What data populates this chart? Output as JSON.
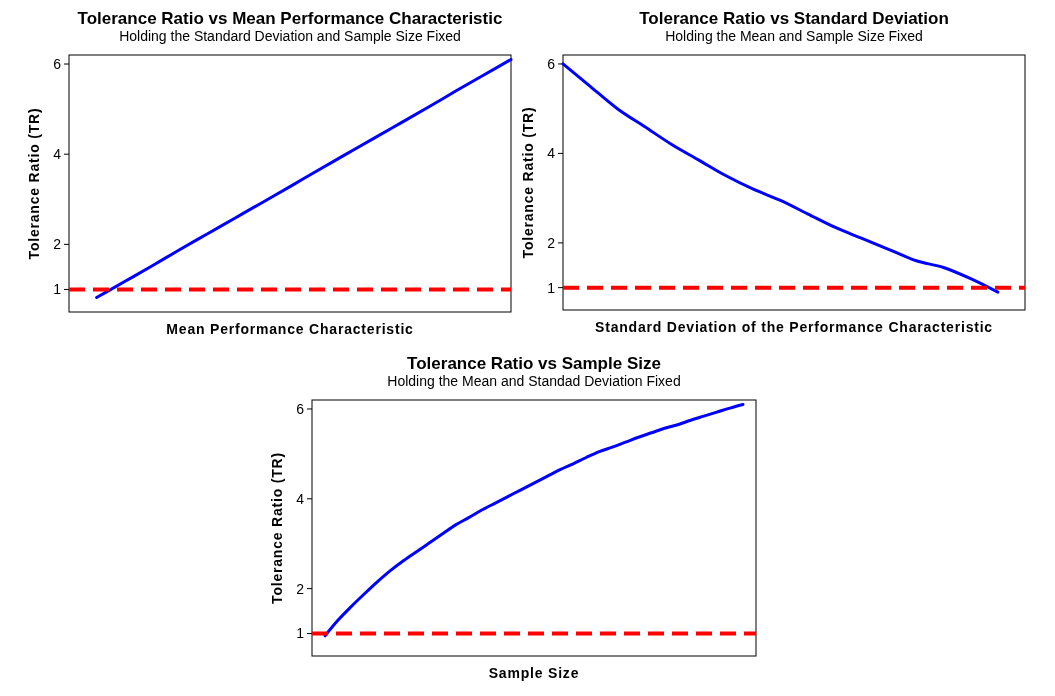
{
  "chart_data": [
    {
      "type": "line",
      "title": "Tolerance Ratio vs Mean Performance Characteristic",
      "subtitle": "Holding the Standard Deviation and Sample Size Fixed",
      "xlabel": "Mean Performance Characteristic",
      "ylabel": "Tolerance Ratio (TR)",
      "categories": [
        null,
        null,
        null,
        null,
        null,
        null,
        null,
        null,
        null,
        null,
        null,
        null,
        null,
        null,
        null,
        null,
        null
      ],
      "series": [
        {
          "color": "#0000ff",
          "values": [
            null,
            0.82,
            1.17,
            1.52,
            1.88,
            2.23,
            2.58,
            2.93,
            3.28,
            3.64,
            3.99,
            4.34,
            4.69,
            5.04,
            5.4,
            5.75,
            6.1
          ]
        }
      ],
      "ylim": [
        0.5,
        6.2
      ],
      "yticks": [
        1,
        2,
        4,
        6
      ],
      "ref_lines": [
        {
          "axis": "y",
          "value": 1,
          "color": "#ff0000",
          "line_style": "dashed"
        }
      ],
      "line_style": "solid",
      "marker": "none"
    },
    {
      "type": "line",
      "title": "Tolerance Ratio vs Standard Deviation",
      "subtitle": "Holding the Mean and Sample Size Fixed",
      "xlabel": "Standard Deviation of the Performance Characteristic",
      "ylabel": "Tolerance Ratio (TR)",
      "categories": [
        null,
        null,
        null,
        null,
        null,
        null,
        null,
        null,
        null,
        null,
        null,
        null,
        null,
        null,
        null,
        null,
        null,
        null
      ],
      "series": [
        {
          "color": "#0000ff",
          "values": [
            6.0,
            5.5,
            5.0,
            4.6,
            4.2,
            3.85,
            3.5,
            3.2,
            2.95,
            2.65,
            2.35,
            2.1,
            1.85,
            1.6,
            1.45,
            1.2,
            0.9,
            null
          ]
        }
      ],
      "ylim": [
        0.5,
        6.2
      ],
      "yticks": [
        1,
        2,
        4,
        6
      ],
      "ref_lines": [
        {
          "axis": "y",
          "value": 1,
          "color": "#ff0000",
          "line_style": "dashed"
        }
      ],
      "line_style": "solid",
      "marker": "none"
    },
    {
      "type": "line",
      "title": "Tolerance Ratio vs Sample Size",
      "subtitle": "Holding the Mean and Standad Deviation Fixed",
      "xlabel": "Sample Size",
      "ylabel": "Tolerance Ratio (TR)",
      "categories": [
        null,
        null,
        null,
        null,
        null,
        null,
        null,
        null,
        null,
        null,
        null,
        null,
        null,
        null,
        null,
        null,
        null,
        null,
        null,
        null,
        null,
        null,
        null,
        null,
        null,
        null,
        null,
        null,
        null,
        null,
        null,
        null,
        null,
        null,
        null
      ],
      "series": [
        {
          "color": "#0000ff",
          "values": [
            null,
            0.95,
            1.3,
            1.6,
            1.88,
            2.15,
            2.4,
            2.62,
            2.82,
            3.02,
            3.22,
            3.42,
            3.58,
            3.75,
            3.9,
            4.05,
            4.2,
            4.35,
            4.5,
            4.65,
            4.78,
            4.92,
            5.05,
            5.15,
            5.26,
            5.37,
            5.47,
            5.57,
            5.65,
            5.75,
            5.84,
            5.93,
            6.02,
            6.1,
            null
          ]
        }
      ],
      "ylim": [
        0.5,
        6.2
      ],
      "yticks": [
        1,
        2,
        4,
        6
      ],
      "ref_lines": [
        {
          "axis": "y",
          "value": 1,
          "color": "#ff0000",
          "line_style": "dashed"
        }
      ],
      "line_style": "solid",
      "marker": "none"
    }
  ]
}
